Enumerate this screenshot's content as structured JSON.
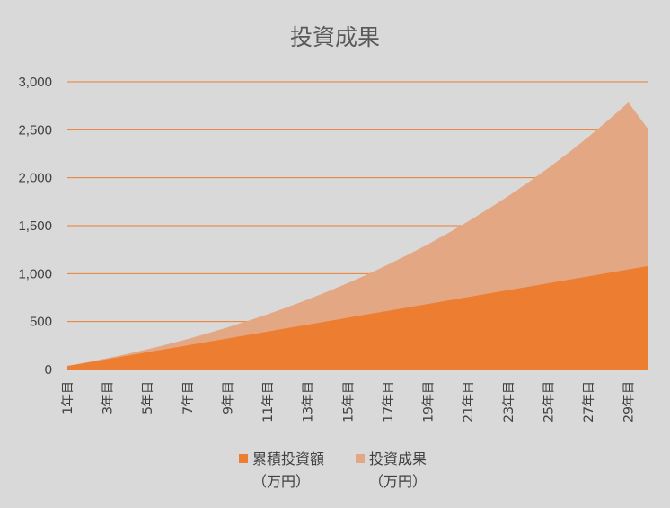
{
  "chart_data": {
    "type": "area",
    "stacked": false,
    "title": "投資成果",
    "xlabel": "",
    "ylabel": "",
    "ylim": [
      0,
      3000
    ],
    "yticks": [
      0,
      500,
      1000,
      1500,
      2000,
      2500,
      3000
    ],
    "ytick_labels": [
      "0",
      "500",
      "1,000",
      "1,500",
      "2,000",
      "2,500",
      "3,000"
    ],
    "grid": true,
    "legend_position": "bottom",
    "categories": [
      "1年目",
      "2年目",
      "3年目",
      "4年目",
      "5年目",
      "6年目",
      "7年目",
      "8年目",
      "9年目",
      "10年目",
      "11年目",
      "12年目",
      "13年目",
      "14年目",
      "15年目",
      "16年目",
      "17年目",
      "18年目",
      "19年目",
      "20年目",
      "21年目",
      "22年目",
      "23年目",
      "24年目",
      "25年目",
      "26年目",
      "27年目",
      "28年目",
      "29年目",
      "30年目"
    ],
    "visible_tick_labels": [
      "1年目",
      "3年目",
      "5年目",
      "7年目",
      "9年目",
      "11年目",
      "13年目",
      "15年目",
      "17年目",
      "19年目",
      "21年目",
      "23年目",
      "25年目",
      "27年目",
      "29年目"
    ],
    "series": [
      {
        "name": "累積投資額（万円）",
        "legend_line1": "累積投資額",
        "legend_line2": "（万円）",
        "color": "#ed7d31",
        "values": [
          36,
          72,
          108,
          144,
          180,
          216,
          252,
          288,
          324,
          360,
          396,
          432,
          468,
          504,
          540,
          576,
          612,
          648,
          684,
          720,
          756,
          792,
          828,
          864,
          900,
          936,
          972,
          1008,
          1044,
          1080
        ]
      },
      {
        "name": "投資成果（万円）",
        "legend_line1": "投資成果",
        "legend_line2": "（万円）",
        "color": "#e3a883",
        "values": [
          37,
          76,
          118,
          163,
          211,
          263,
          318,
          377,
          440,
          506,
          576,
          651,
          730,
          814,
          902,
          995,
          1094,
          1198,
          1307,
          1423,
          1545,
          1673,
          1808,
          1951,
          2101,
          2259,
          2426,
          2601,
          2785,
          2502
        ]
      }
    ]
  }
}
